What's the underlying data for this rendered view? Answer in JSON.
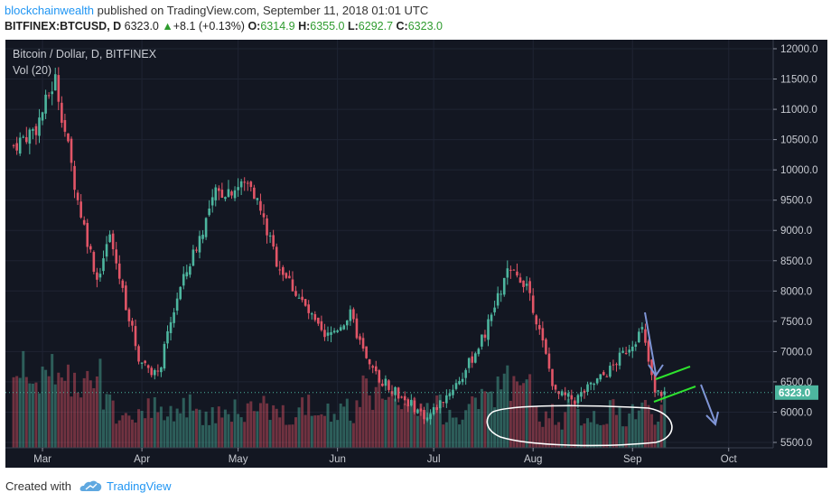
{
  "header": {
    "author": "blockchainwealth",
    "published": " published on TradingView.com, September 11, 2018 01:01 UTC",
    "symbol": "BITFINEX:BTCUSD, D",
    "last": "6323.0",
    "change_arrow": "▲",
    "change": "+8.1 (+0.13%)",
    "o_label": "O:",
    "o_val": "6314.9",
    "h_label": "H:",
    "h_val": "6355.0",
    "l_label": "L:",
    "l_val": "6292.7",
    "c_label": "C:",
    "c_val": "6323.0"
  },
  "chart_title": "Bitcoin / Dollar, D, BITFINEX",
  "volume_label": "Vol (20)",
  "footer": {
    "created_with": "Created with",
    "brand": "TradingView"
  },
  "colors": {
    "up": "#4db69f",
    "down": "#e25567",
    "bg": "#131722",
    "annotation_arrow": "#7f95d6",
    "annotation_line": "#2ee32e",
    "annotation_ellipse": "#ffffff"
  },
  "chart_data": {
    "type": "candlestick",
    "title": "Bitcoin / Dollar, D, BITFINEX",
    "x_ticks": [
      "Mar",
      "Apr",
      "May",
      "Jun",
      "Jul",
      "Aug",
      "Sep",
      "Oct"
    ],
    "y_ticks": [
      "12000.0",
      "11500.0",
      "11000.0",
      "10500.0",
      "10000.0",
      "9500.0",
      "9000.0",
      "8500.0",
      "8000.0",
      "7500.0",
      "7000.0",
      "6500.0",
      "6000.0",
      "5500.0"
    ],
    "ylim": [
      5500,
      12000
    ],
    "last_price": "6323.0",
    "series": [
      {
        "name": "Bitcoin / Dollar",
        "description": "approximate daily closes from February 2018 to Sep 11 2018",
        "key_points": [
          {
            "date": "2018-02-20",
            "close": 10400
          },
          {
            "date": "2018-02-27",
            "close": 10700
          },
          {
            "date": "2018-03-05",
            "close": 11500
          },
          {
            "date": "2018-03-12",
            "close": 9500
          },
          {
            "date": "2018-03-18",
            "close": 8200
          },
          {
            "date": "2018-03-22",
            "close": 8900
          },
          {
            "date": "2018-03-31",
            "close": 6900
          },
          {
            "date": "2018-04-06",
            "close": 6600
          },
          {
            "date": "2018-04-12",
            "close": 7900
          },
          {
            "date": "2018-04-24",
            "close": 9600
          },
          {
            "date": "2018-05-05",
            "close": 9800
          },
          {
            "date": "2018-05-13",
            "close": 8500
          },
          {
            "date": "2018-05-28",
            "close": 7200
          },
          {
            "date": "2018-06-05",
            "close": 7600
          },
          {
            "date": "2018-06-11",
            "close": 6700
          },
          {
            "date": "2018-06-29",
            "close": 5900
          },
          {
            "date": "2018-07-10",
            "close": 6600
          },
          {
            "date": "2018-07-17",
            "close": 7300
          },
          {
            "date": "2018-07-24",
            "close": 8300
          },
          {
            "date": "2018-07-30",
            "close": 8150
          },
          {
            "date": "2018-08-08",
            "close": 6300
          },
          {
            "date": "2018-08-14",
            "close": 6200
          },
          {
            "date": "2018-08-25",
            "close": 6700
          },
          {
            "date": "2018-09-04",
            "close": 7350
          },
          {
            "date": "2018-09-08",
            "close": 6300
          },
          {
            "date": "2018-09-11",
            "close": 6323
          }
        ]
      }
    ],
    "volume": "bars colored by candle direction, elevated in early March and mid-June, annotated low-volume region in August"
  }
}
